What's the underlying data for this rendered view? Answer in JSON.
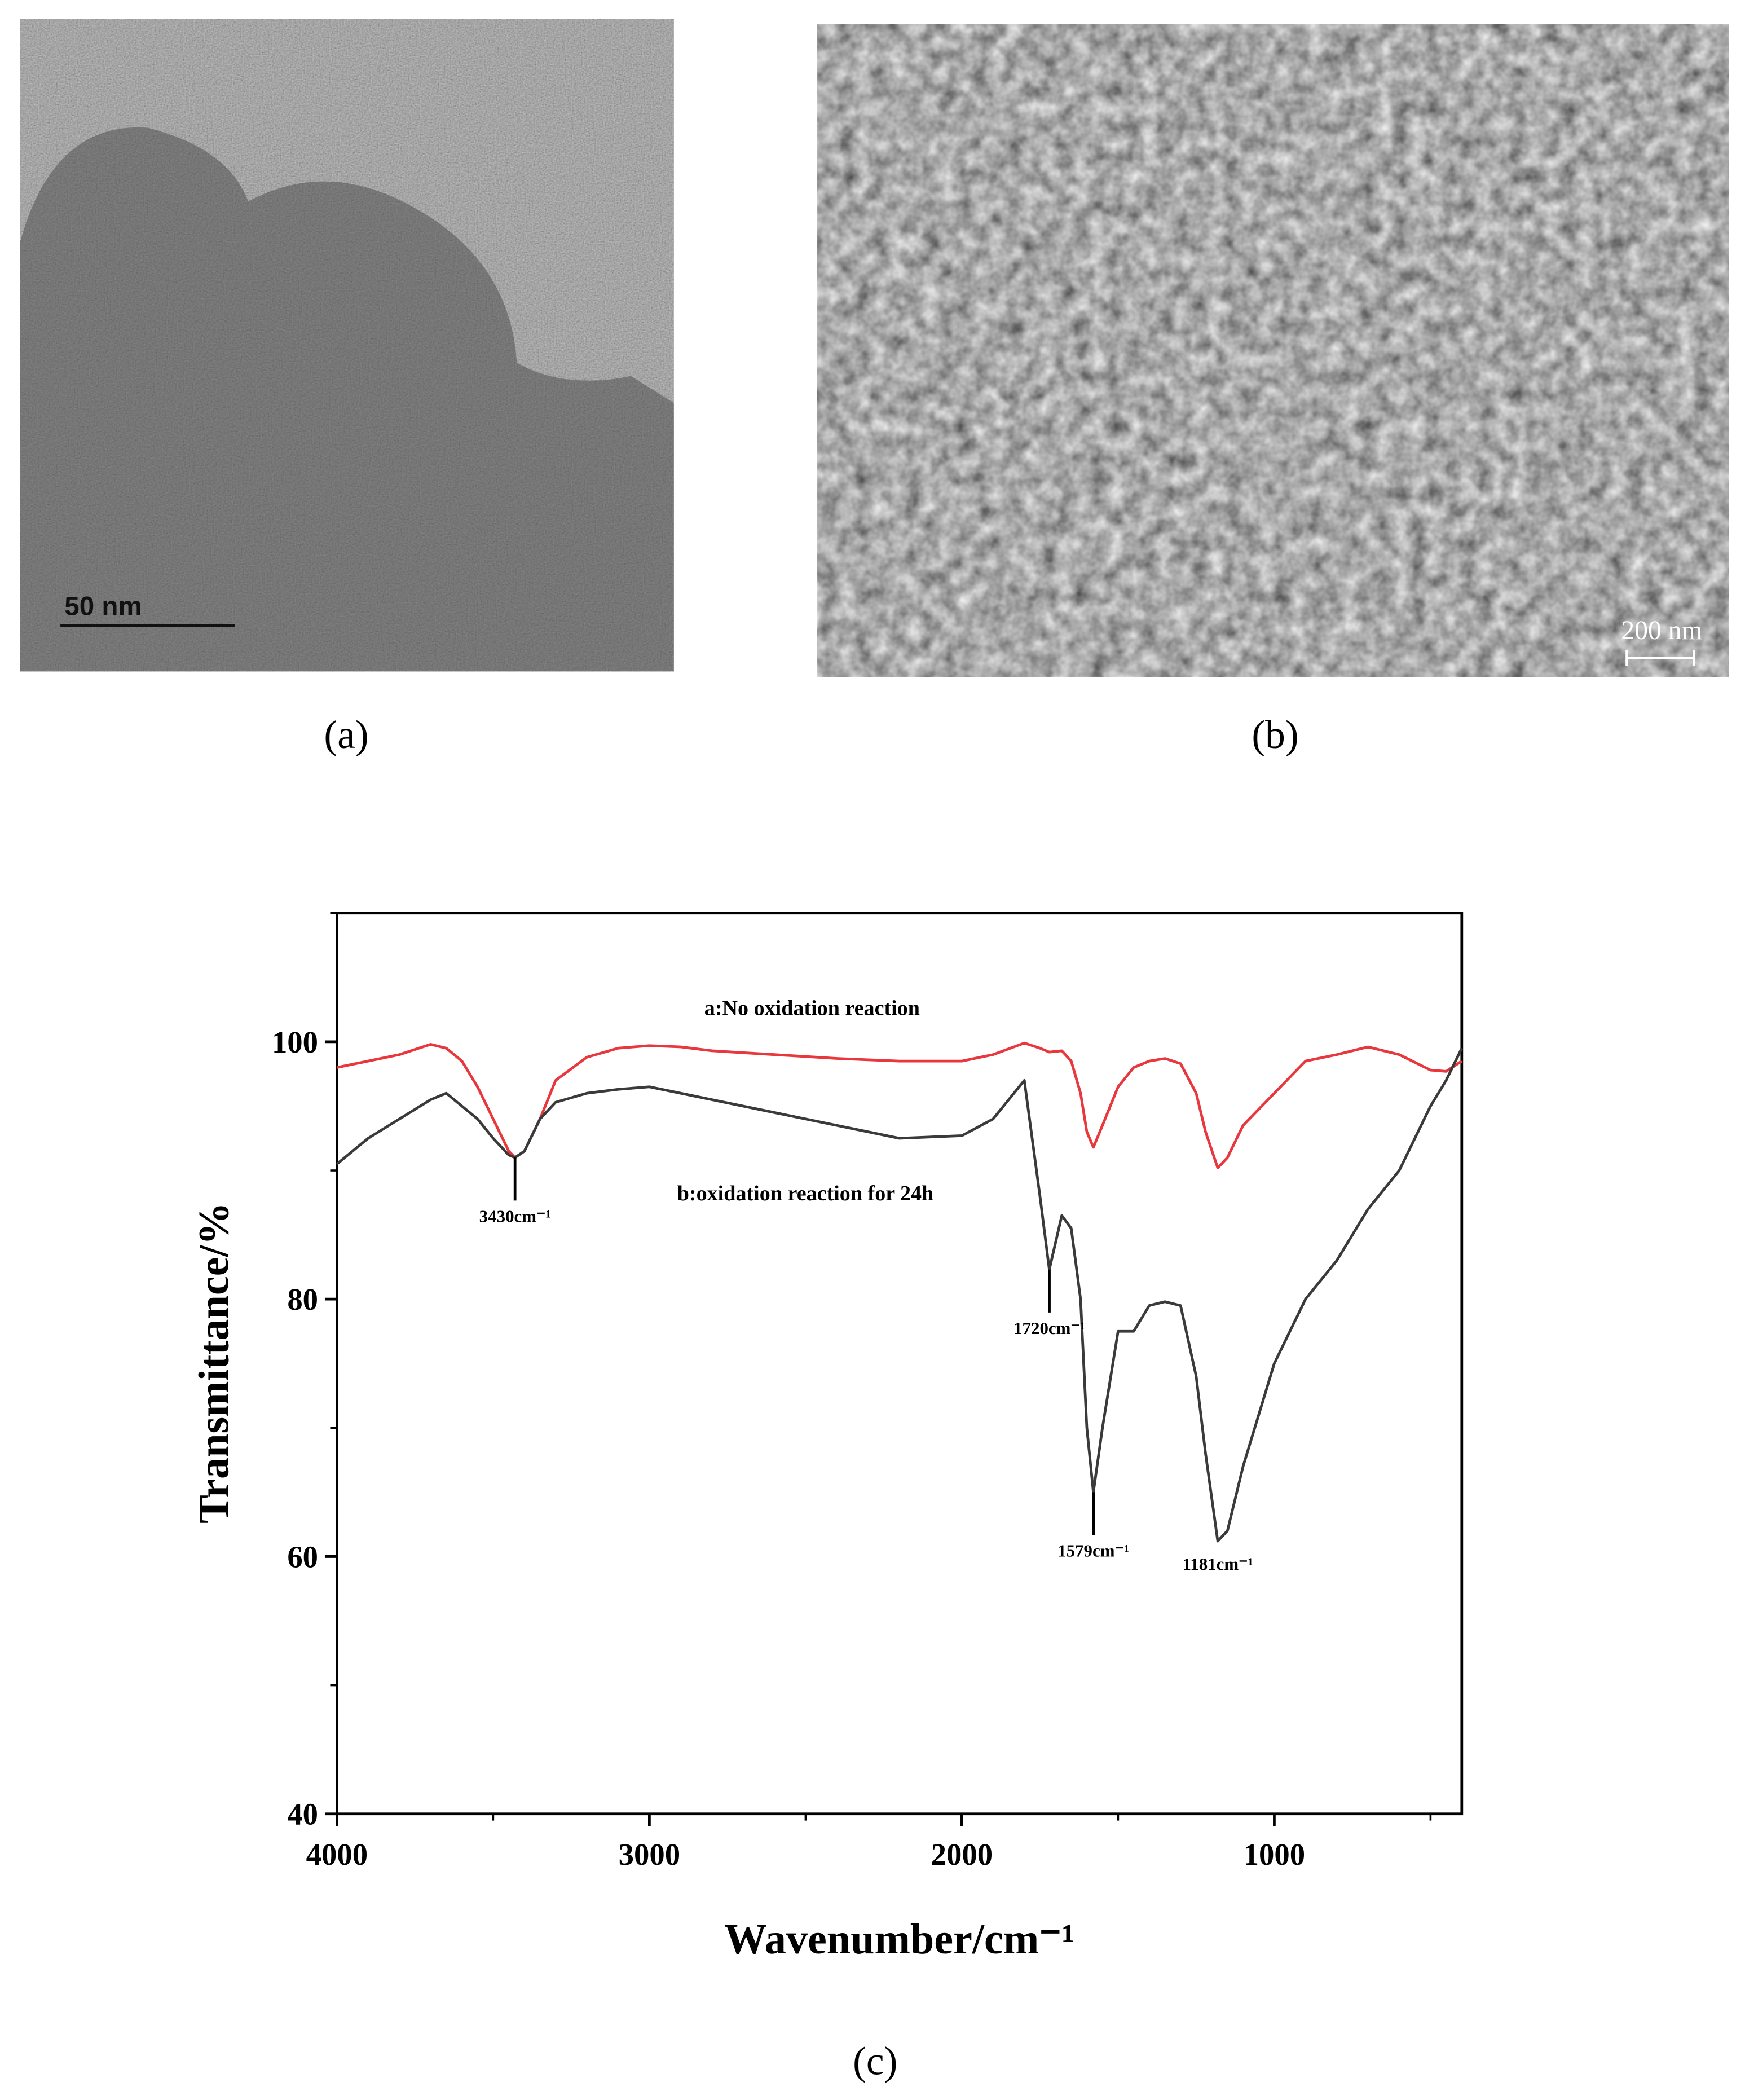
{
  "panels": [
    {
      "label": "(a)",
      "scale_bar": "50 nm"
    },
    {
      "label": "(b)",
      "scale_bar": "200 nm"
    }
  ],
  "chart_data": {
    "type": "line",
    "panel_label": "(c)",
    "x_label": "Wavenumber/cm⁻¹",
    "y_label": "Transmittance/%",
    "xlim": [
      4000,
      400
    ],
    "ylim": [
      40,
      110
    ],
    "xticks": [
      4000,
      3000,
      2000,
      1000
    ],
    "yticks": [
      40,
      60,
      80,
      100
    ],
    "xticks_minor": [
      3500,
      2500,
      1500,
      500
    ],
    "yticks_minor": [
      50,
      70,
      90,
      110
    ],
    "x": [
      4000,
      3900,
      3800,
      3700,
      3650,
      3600,
      3550,
      3500,
      3450,
      3430,
      3400,
      3350,
      3300,
      3200,
      3100,
      3000,
      2900,
      2800,
      2600,
      2400,
      2200,
      2000,
      1900,
      1800,
      1750,
      1720,
      1680,
      1650,
      1620,
      1600,
      1579,
      1550,
      1500,
      1450,
      1400,
      1350,
      1300,
      1250,
      1220,
      1181,
      1150,
      1100,
      1000,
      900,
      800,
      700,
      600,
      500,
      450,
      400
    ],
    "series": [
      {
        "name": "a:No oxidation reaction",
        "color": "#e8383d",
        "values": [
          98,
          98.5,
          99,
          99.8,
          99.5,
          98.5,
          96.5,
          94,
          91.5,
          91,
          91.5,
          94,
          97,
          98.8,
          99.5,
          99.7,
          99.6,
          99.3,
          99,
          98.7,
          98.5,
          98.5,
          99,
          99.9,
          99.5,
          99.2,
          99.3,
          98.5,
          96,
          93,
          91.8,
          93.5,
          96.5,
          98,
          98.5,
          98.7,
          98.3,
          96,
          93,
          90.2,
          91,
          93.5,
          96,
          98.5,
          99,
          99.6,
          99,
          97.8,
          97.7,
          98.5
        ]
      },
      {
        "name": "b:oxidation reaction for 24h",
        "color": "#3a3a3a",
        "values": [
          90.5,
          92.5,
          94,
          95.5,
          96,
          95,
          94,
          92.5,
          91.2,
          91,
          91.5,
          94,
          95.3,
          96,
          96.3,
          96.5,
          96,
          95.5,
          94.5,
          93.5,
          92.5,
          92.7,
          94,
          97,
          88,
          82.3,
          86.5,
          85.5,
          80,
          70,
          65,
          70,
          77.5,
          77.5,
          79.5,
          79.8,
          79.5,
          74,
          68,
          61.2,
          62,
          67,
          75,
          80,
          83,
          87,
          90,
          95,
          97,
          99.5
        ]
      }
    ],
    "annotations": [
      {
        "text": "3430cm⁻¹",
        "x": 3430,
        "y": 91
      },
      {
        "text": "1720cm⁻¹",
        "x": 1720,
        "y": 82.3
      },
      {
        "text": "1579cm⁻¹",
        "x": 1579,
        "y": 65
      },
      {
        "text": "1181cm⁻¹",
        "x": 1181
      }
    ]
  }
}
